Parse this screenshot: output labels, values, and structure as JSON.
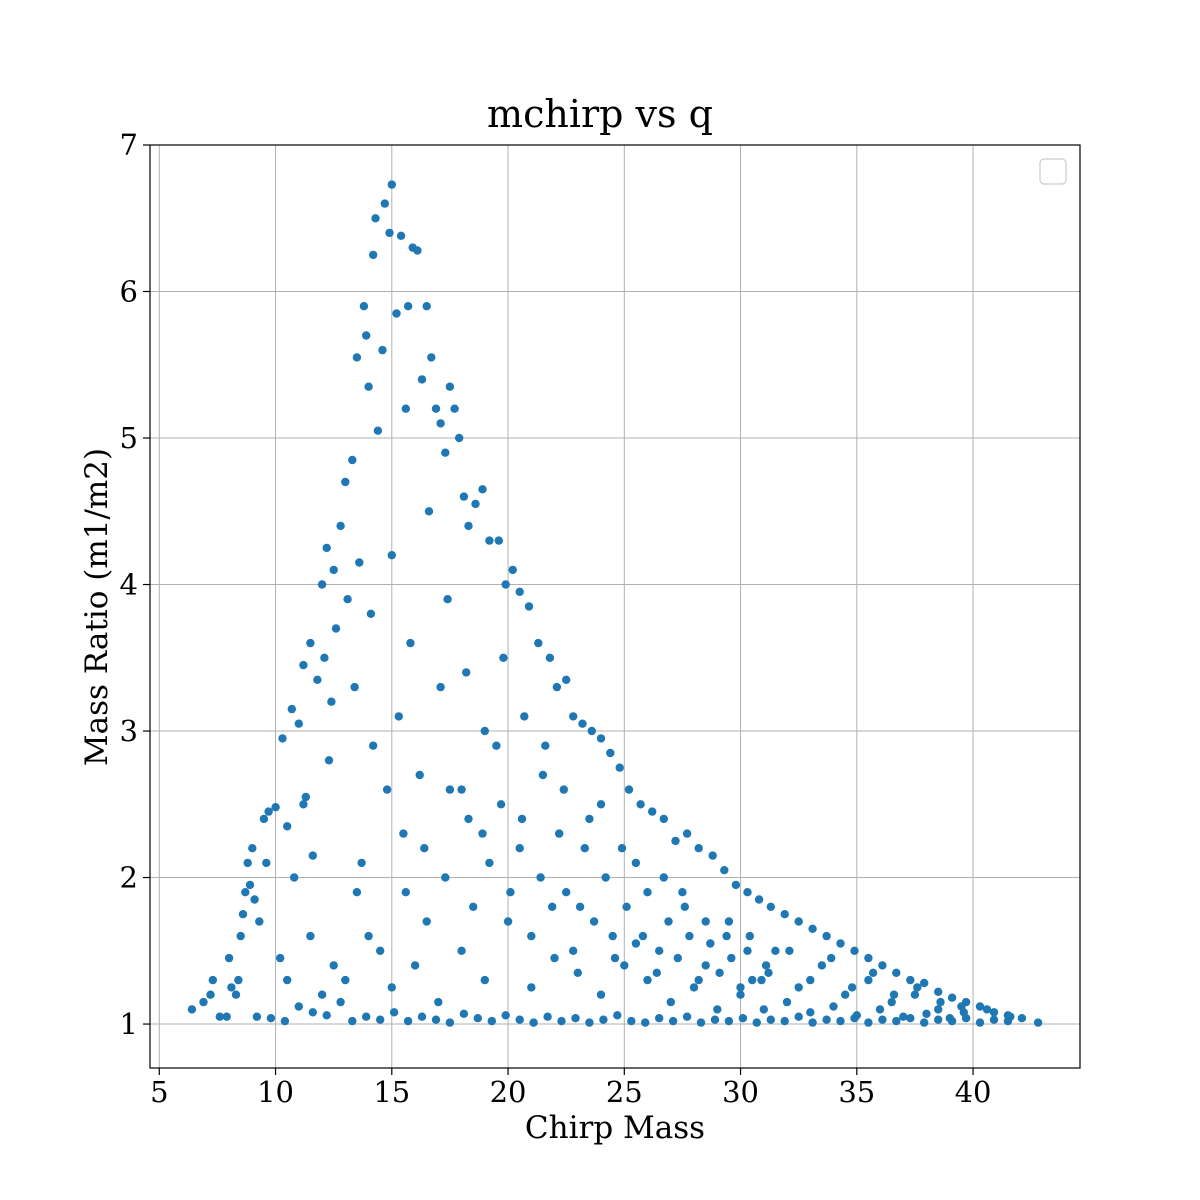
{
  "chart_data": {
    "type": "scatter",
    "title": "mchirp vs q",
    "xlabel": "Chirp Mass",
    "ylabel": "Mass Ratio (m1/m2)",
    "xlim": [
      4.6,
      44.6
    ],
    "ylim": [
      0.7,
      7.0
    ],
    "xticks": [
      5,
      10,
      15,
      20,
      25,
      30,
      35,
      40
    ],
    "yticks": [
      1,
      2,
      3,
      4,
      5,
      6,
      7
    ],
    "grid": true,
    "legend": "upper-right (empty)",
    "marker_color": "#1f77b4",
    "series": [
      {
        "points": [
          [
            6.4,
            1.1
          ],
          [
            6.9,
            1.15
          ],
          [
            7.2,
            1.2
          ],
          [
            7.3,
            1.3
          ],
          [
            7.6,
            1.05
          ],
          [
            7.9,
            1.05
          ],
          [
            8.0,
            1.45
          ],
          [
            8.1,
            1.25
          ],
          [
            8.3,
            1.2
          ],
          [
            8.4,
            1.3
          ],
          [
            8.5,
            1.6
          ],
          [
            8.6,
            1.75
          ],
          [
            8.7,
            1.9
          ],
          [
            8.8,
            2.1
          ],
          [
            8.9,
            1.95
          ],
          [
            9.0,
            2.2
          ],
          [
            9.1,
            1.85
          ],
          [
            9.3,
            1.7
          ],
          [
            9.5,
            2.4
          ],
          [
            9.6,
            2.1
          ],
          [
            9.7,
            2.45
          ],
          [
            10.0,
            2.48
          ],
          [
            10.2,
            1.45
          ],
          [
            10.3,
            2.95
          ],
          [
            10.5,
            2.35
          ],
          [
            10.7,
            3.15
          ],
          [
            10.8,
            2.0
          ],
          [
            11.0,
            3.05
          ],
          [
            11.2,
            3.45
          ],
          [
            11.3,
            2.55
          ],
          [
            11.5,
            3.6
          ],
          [
            11.6,
            2.15
          ],
          [
            11.8,
            3.35
          ],
          [
            12.0,
            4.0
          ],
          [
            12.1,
            3.5
          ],
          [
            12.2,
            4.25
          ],
          [
            12.4,
            3.2
          ],
          [
            12.5,
            4.1
          ],
          [
            12.6,
            3.7
          ],
          [
            12.8,
            4.4
          ],
          [
            13.0,
            4.7
          ],
          [
            13.1,
            3.9
          ],
          [
            13.3,
            4.85
          ],
          [
            13.5,
            5.55
          ],
          [
            13.6,
            4.15
          ],
          [
            13.8,
            5.9
          ],
          [
            13.9,
            5.7
          ],
          [
            14.0,
            5.35
          ],
          [
            14.2,
            6.25
          ],
          [
            14.3,
            6.5
          ],
          [
            14.4,
            5.05
          ],
          [
            14.6,
            5.6
          ],
          [
            14.7,
            6.6
          ],
          [
            14.9,
            6.4
          ],
          [
            15.0,
            6.73
          ],
          [
            15.2,
            5.85
          ],
          [
            15.4,
            6.38
          ],
          [
            15.6,
            5.2
          ],
          [
            15.7,
            5.9
          ],
          [
            15.9,
            6.3
          ],
          [
            16.1,
            6.28
          ],
          [
            16.3,
            5.4
          ],
          [
            16.5,
            5.9
          ],
          [
            16.7,
            5.55
          ],
          [
            16.9,
            5.2
          ],
          [
            17.1,
            5.1
          ],
          [
            17.3,
            4.9
          ],
          [
            17.5,
            5.35
          ],
          [
            17.7,
            5.2
          ],
          [
            17.9,
            5.0
          ],
          [
            18.1,
            4.6
          ],
          [
            18.3,
            4.4
          ],
          [
            18.6,
            4.55
          ],
          [
            18.9,
            4.65
          ],
          [
            19.2,
            4.3
          ],
          [
            19.6,
            4.3
          ],
          [
            19.9,
            4.0
          ],
          [
            20.2,
            4.1
          ],
          [
            20.5,
            3.95
          ],
          [
            20.9,
            3.85
          ],
          [
            21.3,
            3.6
          ],
          [
            21.8,
            3.5
          ],
          [
            22.1,
            3.3
          ],
          [
            22.5,
            3.35
          ],
          [
            22.8,
            3.1
          ],
          [
            23.2,
            3.05
          ],
          [
            23.6,
            3.0
          ],
          [
            24.0,
            2.95
          ],
          [
            24.4,
            2.85
          ],
          [
            24.8,
            2.75
          ],
          [
            25.2,
            2.6
          ],
          [
            25.7,
            2.5
          ],
          [
            26.2,
            2.45
          ],
          [
            26.7,
            2.4
          ],
          [
            27.2,
            2.25
          ],
          [
            27.7,
            2.3
          ],
          [
            28.2,
            2.2
          ],
          [
            28.8,
            2.15
          ],
          [
            29.3,
            2.05
          ],
          [
            29.8,
            1.95
          ],
          [
            30.3,
            1.9
          ],
          [
            30.8,
            1.85
          ],
          [
            31.3,
            1.8
          ],
          [
            31.9,
            1.75
          ],
          [
            32.5,
            1.7
          ],
          [
            33.1,
            1.65
          ],
          [
            33.7,
            1.6
          ],
          [
            34.3,
            1.55
          ],
          [
            34.9,
            1.5
          ],
          [
            35.5,
            1.45
          ],
          [
            36.1,
            1.4
          ],
          [
            36.7,
            1.35
          ],
          [
            37.3,
            1.3
          ],
          [
            37.9,
            1.28
          ],
          [
            38.5,
            1.22
          ],
          [
            39.1,
            1.18
          ],
          [
            39.7,
            1.15
          ],
          [
            40.3,
            1.12
          ],
          [
            40.9,
            1.08
          ],
          [
            41.5,
            1.06
          ],
          [
            42.1,
            1.04
          ],
          [
            42.8,
            1.01
          ],
          [
            9.2,
            1.05
          ],
          [
            9.8,
            1.04
          ],
          [
            10.4,
            1.02
          ],
          [
            11.0,
            1.12
          ],
          [
            11.6,
            1.08
          ],
          [
            12.2,
            1.06
          ],
          [
            12.8,
            1.15
          ],
          [
            13.3,
            1.02
          ],
          [
            13.9,
            1.05
          ],
          [
            14.5,
            1.03
          ],
          [
            15.1,
            1.08
          ],
          [
            15.7,
            1.02
          ],
          [
            16.3,
            1.05
          ],
          [
            16.9,
            1.03
          ],
          [
            17.5,
            1.01
          ],
          [
            18.1,
            1.07
          ],
          [
            18.7,
            1.04
          ],
          [
            19.3,
            1.02
          ],
          [
            19.9,
            1.06
          ],
          [
            20.5,
            1.03
          ],
          [
            21.1,
            1.01
          ],
          [
            21.7,
            1.05
          ],
          [
            22.3,
            1.02
          ],
          [
            22.9,
            1.04
          ],
          [
            23.5,
            1.01
          ],
          [
            24.1,
            1.03
          ],
          [
            24.7,
            1.06
          ],
          [
            25.3,
            1.02
          ],
          [
            25.9,
            1.01
          ],
          [
            26.5,
            1.04
          ],
          [
            27.1,
            1.02
          ],
          [
            27.7,
            1.05
          ],
          [
            28.3,
            1.01
          ],
          [
            28.9,
            1.03
          ],
          [
            29.5,
            1.02
          ],
          [
            30.1,
            1.04
          ],
          [
            30.7,
            1.01
          ],
          [
            31.3,
            1.03
          ],
          [
            31.9,
            1.02
          ],
          [
            32.5,
            1.05
          ],
          [
            33.1,
            1.01
          ],
          [
            33.7,
            1.03
          ],
          [
            34.3,
            1.02
          ],
          [
            34.9,
            1.04
          ],
          [
            35.5,
            1.01
          ],
          [
            36.1,
            1.03
          ],
          [
            36.7,
            1.02
          ],
          [
            37.3,
            1.04
          ],
          [
            37.9,
            1.01
          ],
          [
            38.5,
            1.03
          ],
          [
            39.1,
            1.02
          ],
          [
            39.7,
            1.04
          ],
          [
            40.3,
            1.01
          ],
          [
            40.9,
            1.03
          ],
          [
            41.5,
            1.02
          ],
          [
            10.5,
            1.3
          ],
          [
            11.5,
            1.6
          ],
          [
            12.5,
            1.4
          ],
          [
            13.5,
            1.9
          ],
          [
            14.5,
            1.5
          ],
          [
            15.5,
            2.3
          ],
          [
            16.5,
            1.7
          ],
          [
            17.5,
            2.6
          ],
          [
            18.5,
            1.8
          ],
          [
            19.5,
            2.9
          ],
          [
            20.5,
            2.2
          ],
          [
            21.5,
            2.7
          ],
          [
            22.5,
            1.9
          ],
          [
            23.5,
            2.4
          ],
          [
            24.5,
            1.6
          ],
          [
            25.5,
            2.1
          ],
          [
            26.5,
            1.5
          ],
          [
            27.5,
            1.9
          ],
          [
            28.5,
            1.4
          ],
          [
            29.5,
            1.7
          ],
          [
            30.5,
            1.3
          ],
          [
            31.5,
            1.5
          ],
          [
            32.5,
            1.25
          ],
          [
            33.5,
            1.4
          ],
          [
            34.5,
            1.2
          ],
          [
            35.5,
            1.3
          ],
          [
            36.5,
            1.15
          ],
          [
            37.5,
            1.2
          ],
          [
            38.5,
            1.1
          ],
          [
            39.5,
            1.12
          ],
          [
            11.2,
            2.5
          ],
          [
            12.3,
            2.8
          ],
          [
            13.4,
            3.3
          ],
          [
            14.1,
            3.8
          ],
          [
            15.0,
            4.2
          ],
          [
            15.8,
            3.6
          ],
          [
            16.6,
            4.5
          ],
          [
            17.4,
            3.9
          ],
          [
            18.2,
            3.4
          ],
          [
            19.0,
            3.0
          ],
          [
            19.8,
            3.5
          ],
          [
            20.7,
            3.1
          ],
          [
            21.6,
            2.9
          ],
          [
            22.4,
            2.6
          ],
          [
            23.3,
            2.2
          ],
          [
            24.2,
            2.0
          ],
          [
            25.1,
            1.8
          ],
          [
            26.0,
            1.9
          ],
          [
            26.9,
            1.7
          ],
          [
            27.8,
            1.6
          ],
          [
            28.7,
            1.55
          ],
          [
            29.6,
            1.45
          ],
          [
            30.4,
            1.6
          ],
          [
            31.2,
            1.35
          ],
          [
            32.1,
            1.5
          ],
          [
            33.0,
            1.3
          ],
          [
            33.9,
            1.45
          ],
          [
            34.8,
            1.25
          ],
          [
            35.7,
            1.35
          ],
          [
            36.6,
            1.2
          ],
          [
            37.6,
            1.25
          ],
          [
            38.6,
            1.15
          ],
          [
            39.6,
            1.08
          ],
          [
            40.6,
            1.1
          ],
          [
            41.6,
            1.05
          ],
          [
            12.0,
            1.2
          ],
          [
            13.0,
            1.3
          ],
          [
            14.0,
            1.6
          ],
          [
            15.0,
            1.25
          ],
          [
            16.0,
            1.4
          ],
          [
            17.0,
            1.15
          ],
          [
            18.0,
            1.5
          ],
          [
            19.0,
            1.3
          ],
          [
            20.0,
            1.7
          ],
          [
            21.0,
            1.25
          ],
          [
            22.0,
            1.45
          ],
          [
            23.0,
            1.35
          ],
          [
            24.0,
            1.2
          ],
          [
            25.0,
            1.4
          ],
          [
            26.0,
            1.3
          ],
          [
            27.0,
            1.15
          ],
          [
            28.0,
            1.25
          ],
          [
            29.0,
            1.1
          ],
          [
            30.0,
            1.2
          ],
          [
            31.0,
            1.1
          ],
          [
            32.0,
            1.15
          ],
          [
            33.0,
            1.08
          ],
          [
            34.0,
            1.12
          ],
          [
            35.0,
            1.06
          ],
          [
            36.0,
            1.1
          ],
          [
            37.0,
            1.05
          ],
          [
            38.0,
            1.07
          ],
          [
            39.0,
            1.04
          ],
          [
            14.2,
            2.9
          ],
          [
            15.3,
            3.1
          ],
          [
            16.2,
            2.7
          ],
          [
            17.1,
            3.3
          ],
          [
            18.0,
            2.6
          ],
          [
            18.9,
            2.3
          ],
          [
            19.7,
            2.5
          ],
          [
            20.6,
            2.4
          ],
          [
            21.4,
            2.0
          ],
          [
            22.2,
            2.3
          ],
          [
            23.1,
            1.8
          ],
          [
            24.0,
            2.5
          ],
          [
            24.9,
            2.2
          ],
          [
            25.8,
            1.6
          ],
          [
            26.7,
            2.0
          ],
          [
            27.6,
            1.8
          ],
          [
            28.5,
            1.7
          ],
          [
            29.4,
            1.6
          ],
          [
            30.3,
            1.5
          ],
          [
            31.1,
            1.4
          ],
          [
            13.7,
            2.1
          ],
          [
            14.8,
            2.6
          ],
          [
            15.6,
            1.9
          ],
          [
            16.4,
            2.2
          ],
          [
            17.3,
            2.0
          ],
          [
            18.3,
            2.4
          ],
          [
            19.2,
            2.1
          ],
          [
            20.1,
            1.9
          ],
          [
            21.0,
            1.6
          ],
          [
            21.9,
            1.8
          ],
          [
            22.8,
            1.5
          ],
          [
            23.7,
            1.7
          ],
          [
            24.6,
            1.45
          ],
          [
            25.5,
            1.55
          ],
          [
            26.4,
            1.35
          ],
          [
            27.3,
            1.45
          ],
          [
            28.2,
            1.3
          ],
          [
            29.1,
            1.35
          ],
          [
            30.0,
            1.25
          ],
          [
            30.9,
            1.3
          ]
        ]
      }
    ]
  }
}
